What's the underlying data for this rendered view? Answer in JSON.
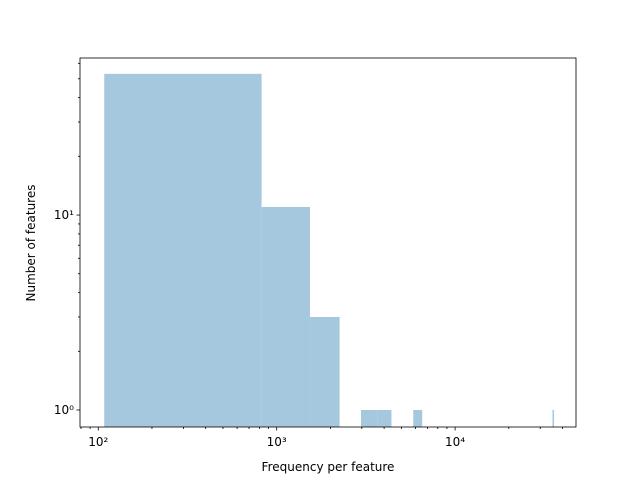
{
  "chart_data": {
    "type": "histogram",
    "xlabel": "Frequency per feature",
    "ylabel": "Number of features",
    "bins": [
      108,
      823,
      1538,
      2253,
      2968,
      3683,
      4398,
      5113,
      5828,
      6543,
      7258,
      7973,
      8688,
      9403,
      10118,
      10833,
      11548,
      12263,
      12978,
      13693,
      14408,
      15123,
      15838,
      16553,
      17268,
      17983,
      18698,
      19413,
      20128,
      20843,
      21558,
      22273,
      22988,
      23703,
      24418,
      25133,
      25848,
      26563,
      27278,
      27993,
      28708,
      29423,
      30138,
      30853,
      31568,
      32283,
      32998,
      33713,
      34428,
      35143,
      35858
    ],
    "values": [
      53,
      11,
      3,
      0,
      1,
      1,
      0,
      0,
      1,
      0,
      0,
      0,
      0,
      0,
      0,
      0,
      0,
      0,
      0,
      0,
      0,
      0,
      0,
      0,
      0,
      0,
      0,
      0,
      0,
      0,
      0,
      0,
      0,
      0,
      0,
      0,
      0,
      0,
      0,
      0,
      0,
      0,
      0,
      0,
      0,
      0,
      0,
      0,
      0,
      1
    ],
    "color": "#a6c8df",
    "xscale": "log",
    "yscale": "log",
    "xlim": [
      79,
      47600
    ],
    "ylim": [
      0.818,
      63.9
    ],
    "xticks": [
      {
        "value": 100,
        "label": "10²"
      },
      {
        "value": 1000,
        "label": "10³"
      },
      {
        "value": 10000,
        "label": "10⁴"
      }
    ],
    "yticks": [
      {
        "value": 1,
        "label": "10⁰"
      },
      {
        "value": 10,
        "label": "10¹"
      }
    ],
    "xminorticks": [
      80,
      90,
      200,
      300,
      400,
      500,
      600,
      700,
      800,
      900,
      2000,
      3000,
      4000,
      5000,
      6000,
      7000,
      8000,
      9000,
      20000,
      30000,
      40000
    ],
    "yminorticks": [
      2,
      3,
      4,
      5,
      6,
      7,
      8,
      9,
      20,
      30,
      40,
      50,
      60
    ]
  }
}
